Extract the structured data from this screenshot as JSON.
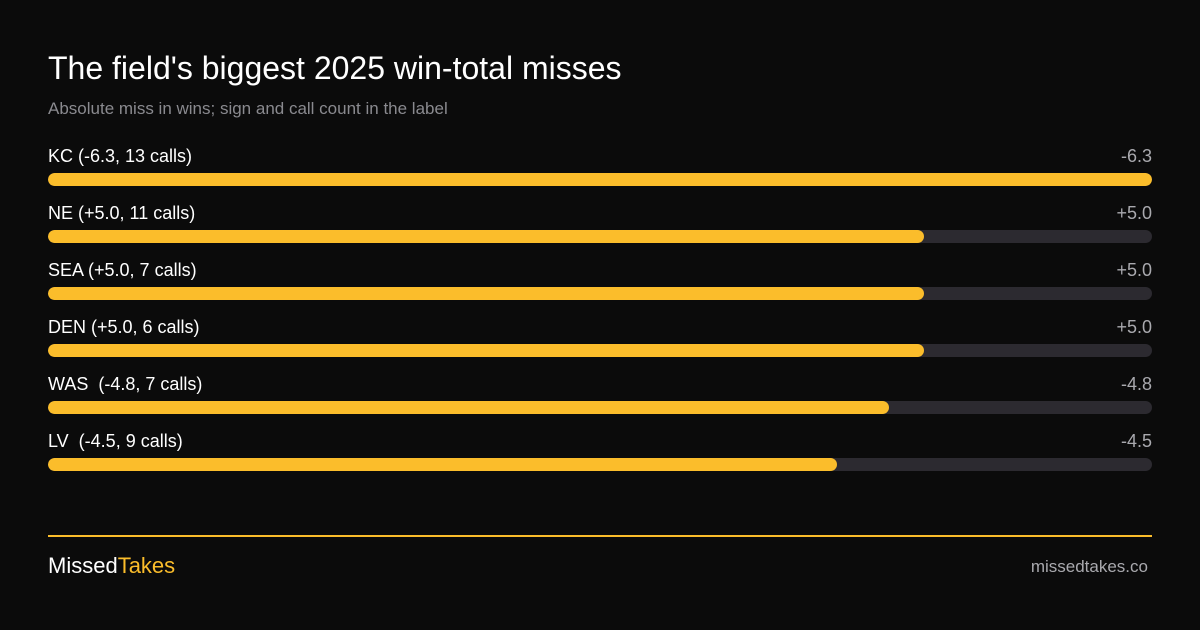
{
  "header": {
    "title": "The field's biggest 2025 win-total misses",
    "subtitle": "Absolute miss in wins; sign and call count in the label"
  },
  "colors": {
    "accent": "#fbbd2b",
    "track": "#2c2a30",
    "background": "#0b0b0b"
  },
  "chart_data": {
    "type": "bar",
    "orientation": "horizontal",
    "title": "The field's biggest 2025 win-total misses",
    "subtitle": "Absolute miss in wins; sign and call count in the label",
    "xlim": [
      0,
      6.3
    ],
    "categories": [
      "KC (-6.3, 13 calls)",
      "NE (+5.0, 11 calls)",
      "SEA (+5.0, 7 calls)",
      "DEN (+5.0, 6 calls)",
      "WAS  (-4.8, 7 calls)",
      "LV  (-4.5, 9 calls)"
    ],
    "value_labels": [
      "-6.3",
      "+5.0",
      "+5.0",
      "+5.0",
      "-4.8",
      "-4.5"
    ],
    "values": [
      6.3,
      5.0,
      5.0,
      5.0,
      4.8,
      4.5
    ]
  },
  "footer": {
    "brand_part1": "Missed",
    "brand_part2": "Takes",
    "site": "missedtakes.co"
  }
}
